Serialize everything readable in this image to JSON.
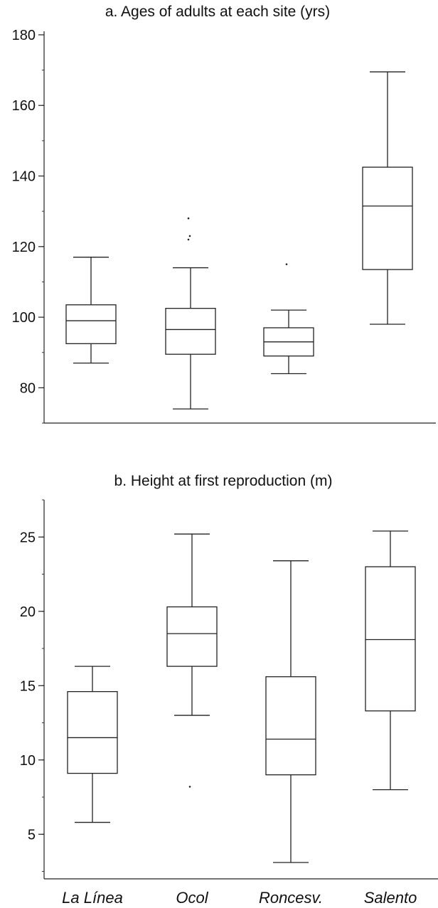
{
  "chart_data": [
    {
      "type": "box",
      "title": "a. Ages of adults at each site (yrs)",
      "ylim": [
        70,
        181
      ],
      "yticks": [
        80,
        100,
        120,
        140,
        160,
        180
      ],
      "yminor": 10,
      "categories": [
        "La Línea",
        "Ocol",
        "Roncesv.",
        "Salento"
      ],
      "boxes": [
        {
          "whisker_low": 87,
          "q1": 92.5,
          "median": 99,
          "q3": 103.5,
          "whisker_high": 117,
          "outliers": []
        },
        {
          "whisker_low": 74,
          "q1": 89.5,
          "median": 96.5,
          "q3": 102.5,
          "whisker_high": 114,
          "outliers": [
            122,
            123,
            128
          ]
        },
        {
          "whisker_low": 84,
          "q1": 89,
          "median": 93,
          "q3": 97,
          "whisker_high": 102,
          "outliers": [
            115
          ]
        },
        {
          "whisker_low": 98,
          "q1": 113.5,
          "median": 131.5,
          "q3": 142.5,
          "whisker_high": 169.5,
          "outliers": []
        }
      ]
    },
    {
      "type": "box",
      "title": "b. Height at first reproduction (m)",
      "ylim": [
        2,
        27.5
      ],
      "yticks": [
        5,
        10,
        15,
        20,
        25
      ],
      "yminor": 2.5,
      "categories": [
        "La Línea",
        "Ocol",
        "Roncesv.",
        "Salento"
      ],
      "boxes": [
        {
          "whisker_low": 5.8,
          "q1": 9.1,
          "median": 11.5,
          "q3": 14.6,
          "whisker_high": 16.3,
          "outliers": []
        },
        {
          "whisker_low": 13.0,
          "q1": 16.3,
          "median": 18.5,
          "q3": 20.3,
          "whisker_high": 25.2,
          "outliers": [
            8.2
          ]
        },
        {
          "whisker_low": 3.1,
          "q1": 9.0,
          "median": 11.4,
          "q3": 15.6,
          "whisker_high": 23.4,
          "outliers": []
        },
        {
          "whisker_low": 8.0,
          "q1": 13.3,
          "median": 18.1,
          "q3": 23.0,
          "whisker_high": 25.4,
          "outliers": []
        }
      ]
    }
  ]
}
